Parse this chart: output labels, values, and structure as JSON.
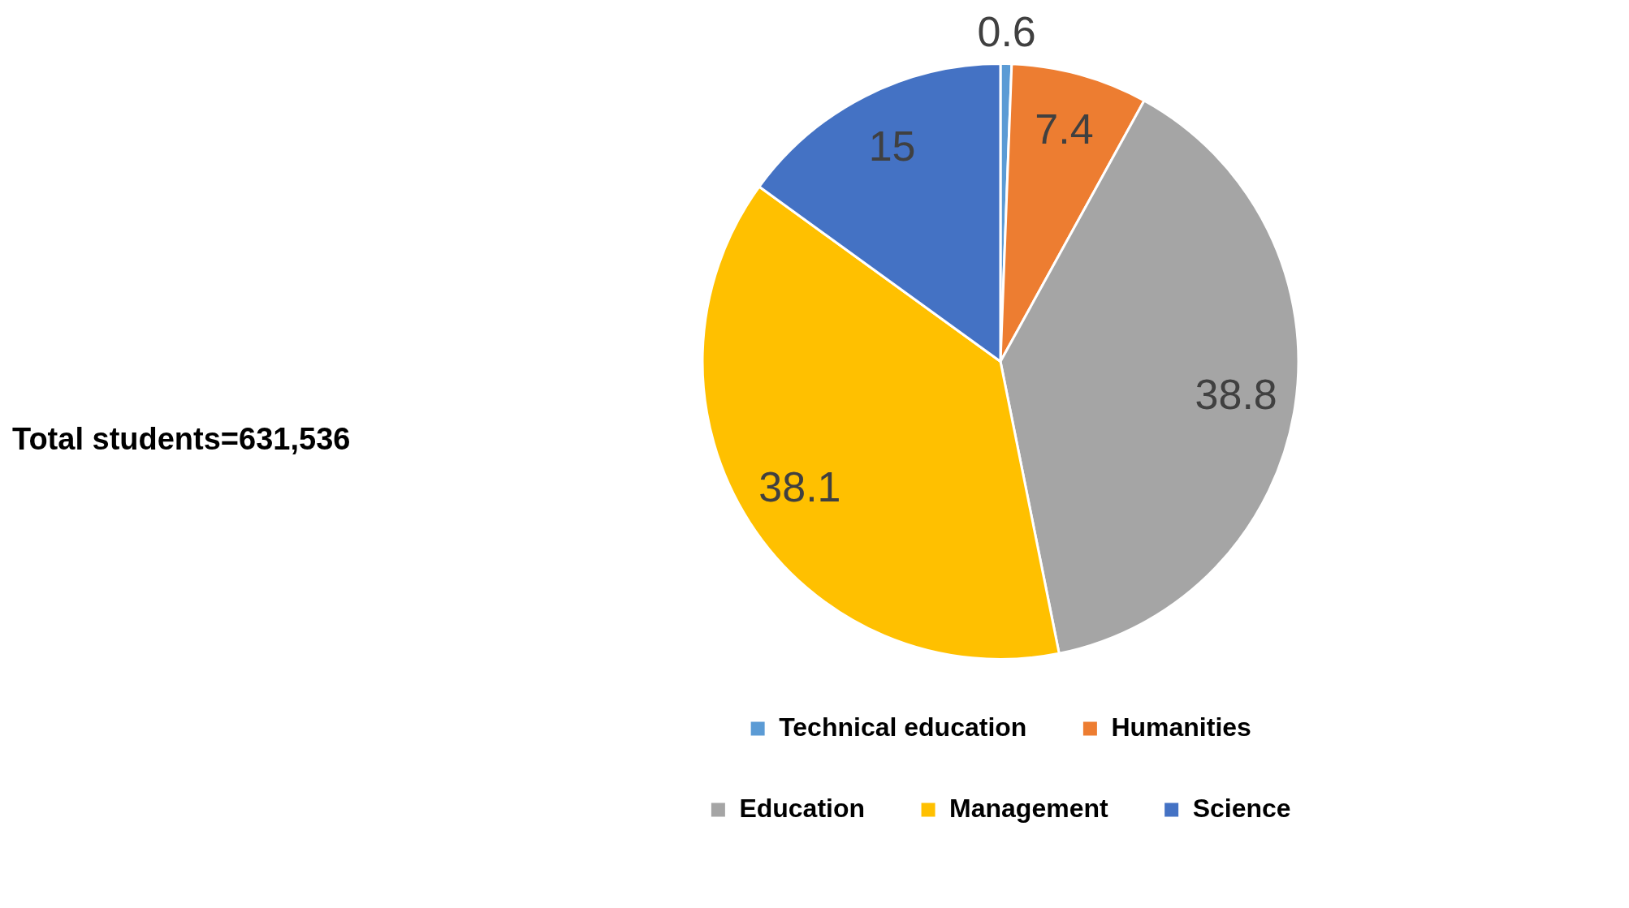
{
  "chart_data": {
    "type": "pie",
    "categories": [
      "Technical education",
      "Humanities",
      "Education",
      "Management",
      "Science"
    ],
    "values": [
      0.6,
      7.4,
      38.8,
      38.1,
      15
    ],
    "colors": [
      "#5b9bd5",
      "#ed7d31",
      "#a5a5a5",
      "#ffc000",
      "#4472c4"
    ],
    "data_labels": true,
    "legend": "bottom",
    "annotations": [
      "Total students=631,536"
    ]
  }
}
